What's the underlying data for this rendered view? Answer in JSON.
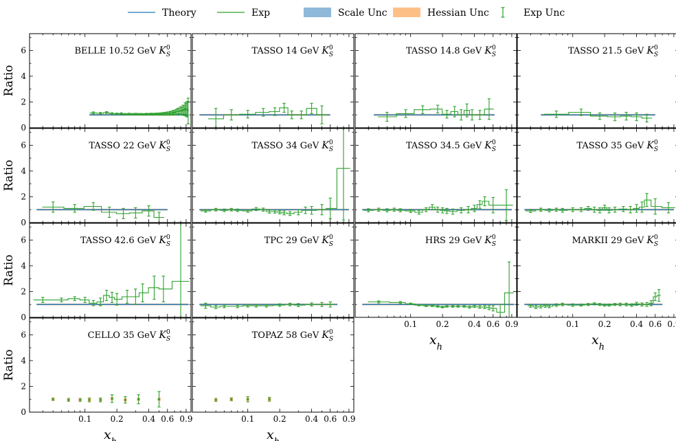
{
  "legend": {
    "position": "top",
    "items": [
      {
        "label": "Theory",
        "kind": "line",
        "color": "#1f77b4"
      },
      {
        "label": "Exp",
        "kind": "line",
        "color": "#2ca02c"
      },
      {
        "label": "Scale Unc",
        "kind": "patch",
        "color": "#8fb8d9"
      },
      {
        "label": "Hessian Unc",
        "kind": "patch",
        "color": "#fdbf86"
      },
      {
        "label": "Exp Unc",
        "kind": "errorbar",
        "color": "#2ca02c"
      }
    ]
  },
  "colors": {
    "theory": "#1f77b4",
    "exp": "#2ca02c",
    "scale_band": "#808080",
    "hessian_band": "#f4a460"
  },
  "axes": {
    "ylabel": "Ratio",
    "xlabel": "x",
    "xlabel_sub": "h",
    "x_scale": "log",
    "xlim": [
      0.03,
      1.0
    ],
    "ylim": [
      0,
      7.3
    ],
    "yticks": [
      0,
      2,
      4,
      6
    ],
    "xticks": [
      0.1,
      0.2,
      0.4,
      0.6,
      0.9
    ]
  },
  "chart_data": [
    {
      "type": "step-ratio",
      "title": "BELLE 10.52 GeV",
      "has_x_ticklabels": false,
      "step": true,
      "x": [
        0.12,
        0.14,
        0.16,
        0.18,
        0.2,
        0.22,
        0.24,
        0.26,
        0.28,
        0.3,
        0.32,
        0.34,
        0.36,
        0.38,
        0.4,
        0.42,
        0.44,
        0.46,
        0.48,
        0.5,
        0.52,
        0.54,
        0.56,
        0.58,
        0.6,
        0.62,
        0.64,
        0.66,
        0.68,
        0.7,
        0.72,
        0.74,
        0.76,
        0.78,
        0.8,
        0.82,
        0.84,
        0.86,
        0.88,
        0.9,
        0.92,
        0.94
      ],
      "y": [
        1.15,
        1.12,
        1.18,
        1.1,
        1.08,
        1.1,
        1.05,
        1.07,
        1.05,
        1.06,
        1.05,
        1.05,
        1.04,
        1.06,
        1.05,
        1.07,
        1.05,
        1.06,
        1.07,
        1.06,
        1.08,
        1.07,
        1.1,
        1.08,
        1.12,
        1.1,
        1.15,
        1.12,
        1.2,
        1.15,
        1.22,
        1.25,
        1.3,
        1.28,
        1.35,
        1.3,
        1.4,
        1.35,
        1.5,
        1.4,
        1.45,
        1.3
      ],
      "err": [
        0.08,
        0.07,
        0.07,
        0.07,
        0.06,
        0.06,
        0.06,
        0.06,
        0.06,
        0.06,
        0.06,
        0.06,
        0.06,
        0.06,
        0.06,
        0.06,
        0.07,
        0.07,
        0.07,
        0.08,
        0.08,
        0.09,
        0.1,
        0.1,
        0.11,
        0.12,
        0.13,
        0.14,
        0.15,
        0.16,
        0.18,
        0.2,
        0.22,
        0.25,
        0.28,
        0.3,
        0.35,
        0.4,
        0.45,
        0.5,
        0.6,
        1.0
      ],
      "theory_range": [
        0.11,
        0.95
      ]
    },
    {
      "type": "step-ratio",
      "title": "TASSO 14 GeV",
      "has_x_ticklabels": false,
      "step": true,
      "x": [
        0.05,
        0.07,
        0.1,
        0.14,
        0.18,
        0.22,
        0.26,
        0.32,
        0.4,
        0.5
      ],
      "y": [
        0.7,
        1.0,
        1.05,
        1.2,
        1.25,
        1.55,
        1.0,
        1.0,
        1.5,
        1.0
      ],
      "err": [
        0.8,
        0.4,
        0.3,
        0.3,
        0.3,
        0.35,
        0.3,
        0.3,
        0.4,
        0.7
      ],
      "theory_range": [
        0.035,
        0.6
      ]
    },
    {
      "type": "step-ratio",
      "title": "TASSO 14.8 GeV",
      "has_x_ticklabels": false,
      "step": true,
      "x": [
        0.06,
        0.09,
        0.13,
        0.18,
        0.22,
        0.26,
        0.3,
        0.34,
        0.38,
        0.45,
        0.55
      ],
      "y": [
        0.85,
        1.1,
        1.4,
        1.45,
        1.05,
        1.25,
        1.0,
        1.35,
        1.0,
        1.0,
        1.45
      ],
      "err": [
        0.35,
        0.3,
        0.3,
        0.3,
        0.3,
        0.4,
        0.4,
        0.5,
        0.4,
        0.35,
        0.8
      ],
      "theory_range": [
        0.045,
        0.62
      ]
    },
    {
      "type": "step-ratio",
      "title": "TASSO 21.5 GeV",
      "has_x_ticklabels": false,
      "step": true,
      "x": [
        0.07,
        0.12,
        0.18,
        0.25,
        0.32,
        0.4,
        0.5
      ],
      "y": [
        1.05,
        1.2,
        0.9,
        0.85,
        0.9,
        0.85,
        0.75
      ],
      "err": [
        0.25,
        0.25,
        0.25,
        0.3,
        0.3,
        0.3,
        0.3
      ],
      "theory_range": [
        0.05,
        0.6
      ]
    },
    {
      "type": "step-ratio",
      "title": "TASSO 22 GeV",
      "has_x_ticklabels": false,
      "step": true,
      "x": [
        0.05,
        0.08,
        0.12,
        0.17,
        0.23,
        0.3,
        0.4,
        0.5
      ],
      "y": [
        1.2,
        1.1,
        1.25,
        0.8,
        0.7,
        0.75,
        0.9,
        0.4
      ],
      "err": [
        0.4,
        0.3,
        0.3,
        0.4,
        0.4,
        0.4,
        0.4,
        0.4
      ],
      "theory_range": [
        0.035,
        0.6
      ]
    },
    {
      "type": "step-ratio",
      "title": "TASSO 34 GeV",
      "has_x_ticklabels": false,
      "step": true,
      "x": [
        0.04,
        0.05,
        0.06,
        0.07,
        0.08,
        0.1,
        0.12,
        0.14,
        0.16,
        0.18,
        0.2,
        0.22,
        0.25,
        0.3,
        0.35,
        0.4,
        0.5,
        0.6,
        0.8
      ],
      "y": [
        0.9,
        1.0,
        0.95,
        1.0,
        0.95,
        0.9,
        1.05,
        1.0,
        0.85,
        0.85,
        0.8,
        0.75,
        0.7,
        0.8,
        0.95,
        0.95,
        1.0,
        1.1,
        4.2
      ],
      "err": [
        0.1,
        0.1,
        0.1,
        0.1,
        0.1,
        0.1,
        0.12,
        0.12,
        0.12,
        0.12,
        0.12,
        0.15,
        0.15,
        0.2,
        0.25,
        0.3,
        0.4,
        0.8,
        4.0
      ],
      "theory_range": [
        0.035,
        0.9
      ]
    },
    {
      "type": "step-ratio",
      "title": "TASSO 34.5 GeV",
      "has_x_ticklabels": false,
      "step": true,
      "x": [
        0.04,
        0.05,
        0.06,
        0.07,
        0.08,
        0.1,
        0.12,
        0.14,
        0.16,
        0.18,
        0.2,
        0.22,
        0.25,
        0.3,
        0.35,
        0.4,
        0.45,
        0.5,
        0.6,
        0.8
      ],
      "y": [
        0.95,
        1.0,
        0.95,
        1.0,
        0.95,
        0.9,
        0.8,
        1.0,
        1.2,
        1.0,
        0.95,
        0.9,
        0.85,
        0.95,
        1.0,
        1.1,
        1.4,
        1.65,
        1.35,
        1.35
      ],
      "err": [
        0.12,
        0.12,
        0.12,
        0.12,
        0.12,
        0.12,
        0.15,
        0.15,
        0.2,
        0.2,
        0.2,
        0.2,
        0.2,
        0.2,
        0.25,
        0.25,
        0.3,
        0.35,
        0.6,
        1.2
      ],
      "theory_range": [
        0.035,
        0.9
      ]
    },
    {
      "type": "step-ratio",
      "title": "TASSO 35 GeV",
      "has_x_ticklabels": false,
      "step": true,
      "x": [
        0.04,
        0.05,
        0.06,
        0.07,
        0.08,
        0.1,
        0.12,
        0.14,
        0.16,
        0.18,
        0.2,
        0.22,
        0.25,
        0.3,
        0.35,
        0.4,
        0.45,
        0.5,
        0.6,
        0.8
      ],
      "y": [
        0.9,
        1.0,
        0.95,
        1.0,
        0.95,
        1.0,
        1.0,
        1.1,
        1.0,
        0.95,
        1.15,
        0.95,
        1.0,
        1.05,
        1.0,
        1.1,
        1.2,
        1.75,
        1.25,
        1.15
      ],
      "err": [
        0.12,
        0.12,
        0.12,
        0.12,
        0.15,
        0.15,
        0.15,
        0.15,
        0.2,
        0.2,
        0.2,
        0.2,
        0.2,
        0.2,
        0.25,
        0.3,
        0.4,
        0.5,
        0.6,
        0.4
      ],
      "theory_range": [
        0.035,
        0.9
      ]
    },
    {
      "type": "step-ratio",
      "title": "TASSO 42.6 GeV",
      "has_x_ticklabels": false,
      "step": true,
      "x": [
        0.04,
        0.06,
        0.08,
        0.1,
        0.12,
        0.14,
        0.16,
        0.18,
        0.2,
        0.25,
        0.3,
        0.35,
        0.45,
        0.55,
        0.8
      ],
      "y": [
        1.35,
        1.35,
        1.45,
        1.35,
        1.1,
        1.2,
        1.7,
        1.55,
        1.4,
        1.6,
        1.6,
        1.9,
        2.3,
        2.2,
        2.8
      ],
      "err": [
        0.2,
        0.15,
        0.15,
        0.2,
        0.2,
        0.3,
        0.4,
        0.4,
        0.45,
        0.5,
        0.6,
        0.7,
        0.9,
        1.0,
        6.8
      ],
      "theory_range": [
        0.035,
        0.95
      ]
    },
    {
      "type": "step-ratio",
      "title": "TPC 29 GeV",
      "has_x_ticklabels": false,
      "step": true,
      "x": [
        0.04,
        0.05,
        0.06,
        0.08,
        0.1,
        0.12,
        0.15,
        0.2,
        0.25,
        0.3,
        0.4,
        0.5,
        0.6
      ],
      "y": [
        0.9,
        0.8,
        0.85,
        0.85,
        0.9,
        0.9,
        0.9,
        0.95,
        1.0,
        0.95,
        1.0,
        1.0,
        1.0
      ],
      "err": [
        0.2,
        0.12,
        0.1,
        0.1,
        0.1,
        0.1,
        0.1,
        0.1,
        0.1,
        0.12,
        0.12,
        0.15,
        0.2
      ],
      "theory_range": [
        0.035,
        0.7
      ]
    },
    {
      "type": "step-ratio",
      "title": "HRS 29 GeV",
      "has_x_ticklabels": true,
      "step": true,
      "x": [
        0.05,
        0.08,
        0.1,
        0.12,
        0.14,
        0.16,
        0.18,
        0.2,
        0.22,
        0.25,
        0.28,
        0.32,
        0.36,
        0.4,
        0.45,
        0.5,
        0.55,
        0.6,
        0.7,
        0.85
      ],
      "y": [
        1.2,
        1.15,
        1.05,
        0.95,
        0.9,
        0.9,
        0.85,
        0.8,
        0.85,
        0.85,
        0.85,
        0.85,
        0.8,
        0.85,
        0.8,
        0.8,
        0.75,
        0.7,
        0.4,
        1.9
      ],
      "err": [
        0.08,
        0.08,
        0.06,
        0.06,
        0.06,
        0.06,
        0.06,
        0.06,
        0.06,
        0.06,
        0.06,
        0.06,
        0.08,
        0.08,
        0.1,
        0.12,
        0.15,
        0.2,
        0.6,
        2.4
      ],
      "theory_range": [
        0.035,
        0.95
      ]
    },
    {
      "type": "step-ratio",
      "title": "MARKII 29 GeV",
      "has_x_ticklabels": true,
      "step": true,
      "x": [
        0.04,
        0.045,
        0.05,
        0.055,
        0.06,
        0.07,
        0.08,
        0.1,
        0.12,
        0.14,
        0.16,
        0.18,
        0.2,
        0.22,
        0.25,
        0.28,
        0.32,
        0.36,
        0.4,
        0.45,
        0.5,
        0.55,
        0.6,
        0.65
      ],
      "y": [
        0.9,
        0.8,
        0.85,
        0.9,
        0.85,
        0.95,
        1.0,
        0.95,
        0.95,
        1.0,
        1.05,
        1.0,
        0.95,
        0.95,
        1.0,
        1.0,
        1.0,
        0.95,
        1.05,
        1.0,
        1.0,
        1.1,
        1.6,
        1.7
      ],
      "err": [
        0.12,
        0.12,
        0.12,
        0.12,
        0.1,
        0.1,
        0.1,
        0.1,
        0.08,
        0.08,
        0.08,
        0.08,
        0.08,
        0.08,
        0.08,
        0.1,
        0.1,
        0.1,
        0.12,
        0.12,
        0.15,
        0.2,
        0.3,
        0.45
      ],
      "theory_range": [
        0.035,
        0.7
      ]
    },
    {
      "type": "points-ratio",
      "title": "CELLO 35 GeV",
      "has_x_ticklabels": true,
      "step": false,
      "x": [
        0.05,
        0.07,
        0.09,
        0.11,
        0.14,
        0.18,
        0.24,
        0.32,
        0.5
      ],
      "y": [
        1.0,
        0.95,
        0.95,
        0.95,
        0.95,
        1.05,
        0.95,
        1.0,
        1.0
      ],
      "err": [
        0.1,
        0.12,
        0.12,
        0.15,
        0.15,
        0.3,
        0.25,
        0.35,
        0.6
      ],
      "theory_range": null
    },
    {
      "type": "points-ratio",
      "title": "TOPAZ 58 GeV",
      "has_x_ticklabels": true,
      "step": false,
      "x": [
        0.05,
        0.07,
        0.1,
        0.16
      ],
      "y": [
        0.95,
        1.0,
        1.0,
        1.0
      ],
      "err": [
        0.12,
        0.12,
        0.2,
        0.15
      ],
      "theory_range": null
    }
  ]
}
